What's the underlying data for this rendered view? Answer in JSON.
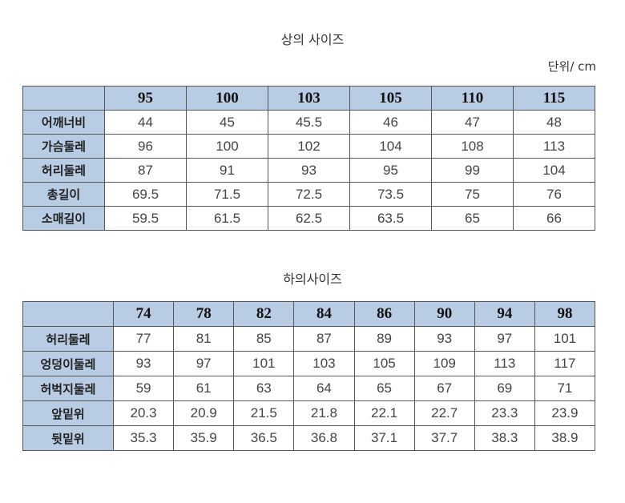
{
  "top": {
    "title": "상의 사이즈",
    "unit": "단위/ cm",
    "header_color": "#b8cce4",
    "sizes": [
      "95",
      "100",
      "103",
      "105",
      "110",
      "115"
    ],
    "rows": [
      {
        "label": "어깨너비",
        "values": [
          "44",
          "45",
          "45.5",
          "46",
          "47",
          "48"
        ]
      },
      {
        "label": "가슴둘레",
        "values": [
          "96",
          "100",
          "102",
          "104",
          "108",
          "113"
        ]
      },
      {
        "label": "허리둘레",
        "values": [
          "87",
          "91",
          "93",
          "95",
          "99",
          "104"
        ]
      },
      {
        "label": "총길이",
        "values": [
          "69.5",
          "71.5",
          "72.5",
          "73.5",
          "75",
          "76"
        ]
      },
      {
        "label": "소매길이",
        "values": [
          "59.5",
          "61.5",
          "62.5",
          "63.5",
          "65",
          "66"
        ]
      }
    ]
  },
  "bottom": {
    "title": "하의사이즈",
    "sizes": [
      "74",
      "78",
      "82",
      "84",
      "86",
      "90",
      "94",
      "98"
    ],
    "rows": [
      {
        "label": "허리둘레",
        "values": [
          "77",
          "81",
          "85",
          "87",
          "89",
          "93",
          "97",
          "101"
        ]
      },
      {
        "label": "엉덩이둘레",
        "values": [
          "93",
          "97",
          "101",
          "103",
          "105",
          "109",
          "113",
          "117"
        ]
      },
      {
        "label": "허벅지둘레",
        "values": [
          "59",
          "61",
          "63",
          "64",
          "65",
          "67",
          "69",
          "71"
        ]
      },
      {
        "label": "앞밑위",
        "values": [
          "20.3",
          "20.9",
          "21.5",
          "21.8",
          "22.1",
          "22.7",
          "23.3",
          "23.9"
        ]
      },
      {
        "label": "뒷밑위",
        "values": [
          "35.3",
          "35.9",
          "36.5",
          "36.8",
          "37.1",
          "37.7",
          "38.3",
          "38.9"
        ]
      }
    ]
  }
}
